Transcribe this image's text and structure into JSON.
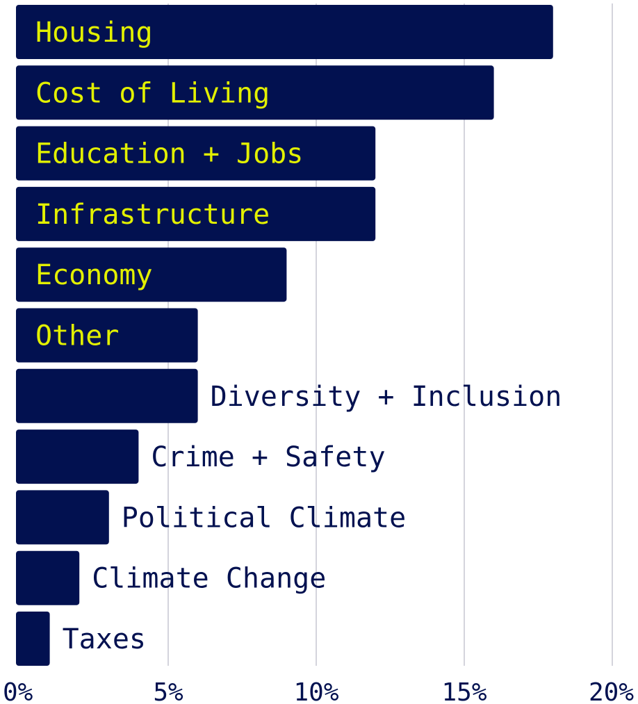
{
  "chart_data": {
    "type": "bar",
    "orientation": "horizontal",
    "categories": [
      "Housing",
      "Cost of Living",
      "Education + Jobs",
      "Infrastructure",
      "Economy",
      "Other",
      "Diversity + Inclusion",
      "Crime + Safety",
      "Political Climate",
      "Climate Change",
      "Taxes"
    ],
    "values": [
      18,
      16,
      12,
      12,
      9,
      6,
      6,
      4,
      3,
      2,
      1
    ],
    "xlim": [
      0,
      20
    ],
    "xticks": [
      "0%",
      "5%",
      "10%",
      "15%",
      "20%"
    ],
    "xtick_values": [
      0,
      5,
      10,
      15,
      20
    ],
    "grid": "vertical",
    "title": "",
    "xlabel": "",
    "ylabel": "",
    "colors": {
      "bar": "#021150",
      "label_inside": "#e2f000",
      "label_outside": "#021150",
      "grid": "#d4d4dc"
    }
  }
}
